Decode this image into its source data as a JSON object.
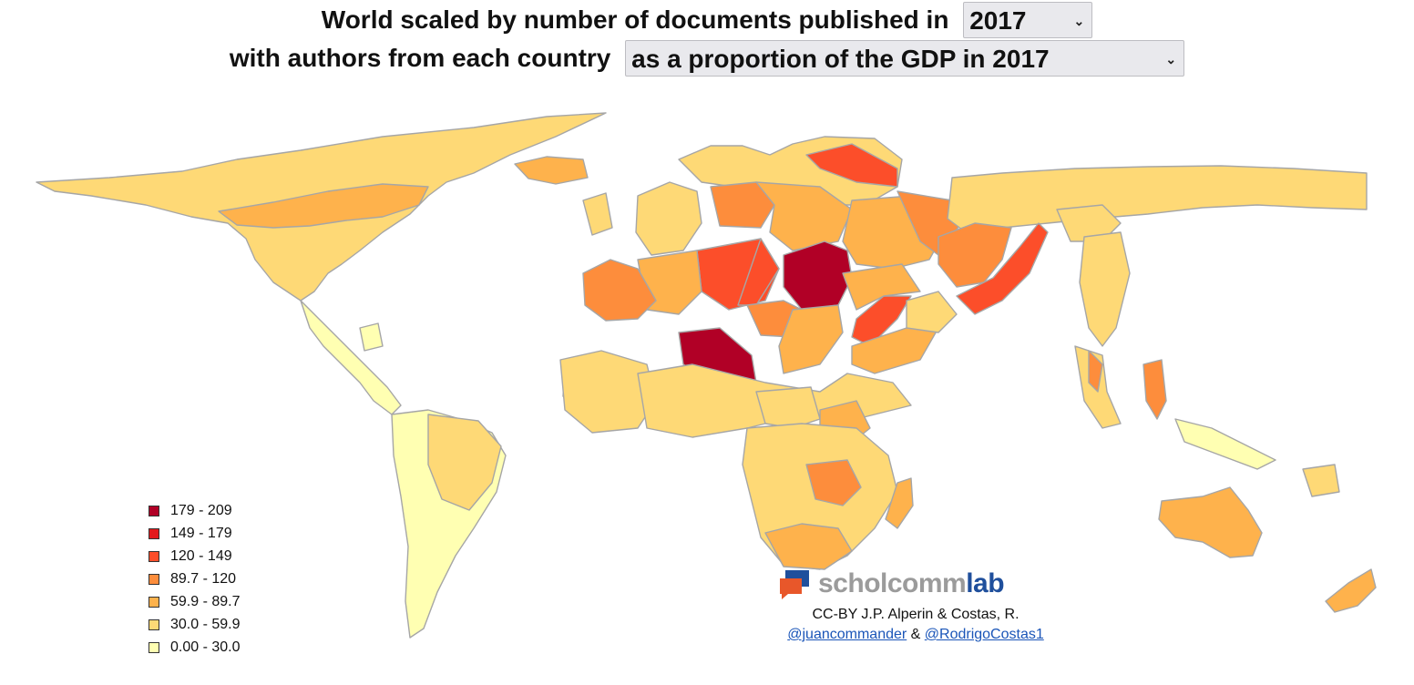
{
  "title": {
    "line1_prefix": "World scaled by number of documents published in",
    "line2_prefix": "with authors from each country"
  },
  "year_select": {
    "value": "2017"
  },
  "measure_select": {
    "value": "as a proportion of the GDP in 2017"
  },
  "legend": [
    {
      "label": "179 - 209",
      "color": "#b10026"
    },
    {
      "label": "149 - 179",
      "color": "#e31a1c"
    },
    {
      "label": "120 - 149",
      "color": "#fc4e2a"
    },
    {
      "label": "89.7 - 120",
      "color": "#fd8d3c"
    },
    {
      "label": "59.9 - 89.7",
      "color": "#feb24c"
    },
    {
      "label": "30.0 - 59.9",
      "color": "#fed976"
    },
    {
      "label": "0.00 - 30.0",
      "color": "#ffffb2"
    }
  ],
  "logo": {
    "part1": "scholcomm",
    "part2": "lab"
  },
  "credits": {
    "line1": "CC-BY J.P. Alperin & Costas, R.",
    "link1": "@juancommander",
    "amp": " & ",
    "link2": "@RodrigoCostas1"
  },
  "colors": {
    "border": "#a6a6a6"
  }
}
